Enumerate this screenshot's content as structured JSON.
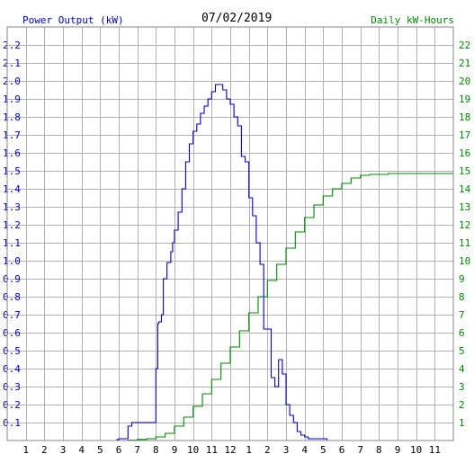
{
  "chart_data": {
    "type": "line",
    "title": "07/02/2019",
    "left_axis_label": "Power Output (kW)",
    "right_axis_label": "Daily kW-Hours",
    "left_ylim": [
      0,
      2.3
    ],
    "right_ylim": [
      0,
      23
    ],
    "grid": true,
    "x_tick_labels": [
      "1",
      "2",
      "3",
      "4",
      "5",
      "6",
      "7",
      "8",
      "9",
      "10",
      "11",
      "12",
      "1",
      "2",
      "3",
      "4",
      "5",
      "6",
      "7",
      "8",
      "9",
      "10",
      "11"
    ],
    "left_tick_labels": [
      "0.1",
      "0.2",
      "0.3",
      "0.4",
      "0.5",
      "0.6",
      "0.7",
      "0.8",
      "0.9",
      "1.0",
      "1.1",
      "1.2",
      "1.3",
      "1.4",
      "1.5",
      "1.6",
      "1.7",
      "1.8",
      "1.9",
      "2.0",
      "2.1",
      "2.2"
    ],
    "right_tick_labels": [
      "1",
      "2",
      "3",
      "4",
      "5",
      "6",
      "7",
      "8",
      "9",
      "10",
      "11",
      "12",
      "13",
      "14",
      "15",
      "16",
      "17",
      "18",
      "19",
      "20",
      "21",
      "22"
    ],
    "colors": {
      "power": "#0000cc",
      "energy": "#008800",
      "grid": "#b0b0b0",
      "left_text": "#0000cc",
      "right_text": "#008800"
    },
    "series": [
      {
        "axis": "left",
        "x": [
          5.0,
          5.5,
          5.9,
          6.0,
          6.1,
          6.3,
          6.5,
          6.7,
          7.0,
          7.3,
          7.6,
          7.9,
          8.0,
          8.1,
          8.15,
          8.3,
          8.4,
          8.6,
          8.8,
          8.9,
          9.0,
          9.2,
          9.4,
          9.6,
          9.8,
          10.0,
          10.2,
          10.4,
          10.6,
          10.8,
          11.0,
          11.2,
          11.4,
          11.6,
          11.8,
          12.0,
          12.2,
          12.4,
          12.6,
          12.8,
          13.0,
          13.2,
          13.4,
          13.6,
          13.8,
          14.0,
          14.2,
          14.4,
          14.6,
          14.8,
          15.0,
          15.2,
          15.4,
          15.6,
          15.8,
          16.0,
          16.2,
          16.4,
          16.6,
          16.8,
          17.0,
          17.2,
          17.4,
          17.5,
          17.6,
          17.7,
          17.8,
          18.0,
          18.2,
          18.4,
          18.6,
          18.8,
          19.0,
          19.2,
          19.4,
          19.6,
          19.8,
          20.0
        ],
        "values": [
          0.0,
          0.0,
          0.005,
          0.01,
          0.01,
          0.01,
          0.08,
          0.1,
          0.1,
          0.1,
          0.1,
          0.1,
          0.4,
          0.65,
          0.66,
          0.7,
          0.9,
          0.99,
          1.05,
          1.1,
          1.17,
          1.27,
          1.4,
          1.55,
          1.65,
          1.72,
          1.76,
          1.82,
          1.86,
          1.9,
          1.94,
          1.98,
          1.98,
          1.95,
          1.9,
          1.87,
          1.8,
          1.75,
          1.58,
          1.55,
          1.35,
          1.25,
          1.1,
          0.98,
          0.62,
          0.62,
          0.35,
          0.3,
          0.45,
          0.37,
          0.2,
          0.14,
          0.1,
          0.05,
          0.03,
          0.02,
          0.01,
          0.01,
          0.01,
          0.01,
          0.01,
          0.0,
          0.0,
          0.0,
          0.0,
          0.0,
          0.0,
          0.0,
          0.0,
          0.0,
          0.0,
          0.0,
          0.0,
          0.0,
          0.0,
          0.0,
          0.0,
          0.0
        ]
      },
      {
        "axis": "right",
        "x": [
          5.0,
          6.0,
          6.5,
          7.0,
          7.5,
          8.0,
          8.5,
          9.0,
          9.5,
          10.0,
          10.5,
          11.0,
          11.5,
          12.0,
          12.5,
          13.0,
          13.5,
          14.0,
          14.5,
          15.0,
          15.5,
          16.0,
          16.5,
          17.0,
          17.5,
          18.0,
          18.5,
          19.0,
          19.5,
          20.0,
          20.5,
          21.0,
          21.5,
          22.0,
          22.5,
          23.0,
          23.5,
          24.0
        ],
        "values": [
          0.0,
          0.0,
          0.02,
          0.06,
          0.1,
          0.2,
          0.4,
          0.8,
          1.3,
          1.9,
          2.6,
          3.4,
          4.3,
          5.2,
          6.1,
          7.1,
          8.0,
          8.9,
          9.8,
          10.7,
          11.6,
          12.4,
          13.1,
          13.6,
          14.0,
          14.3,
          14.6,
          14.75,
          14.8,
          14.8,
          14.85,
          14.85,
          14.85,
          14.85,
          14.85,
          14.85,
          14.85,
          14.85
        ]
      }
    ]
  }
}
